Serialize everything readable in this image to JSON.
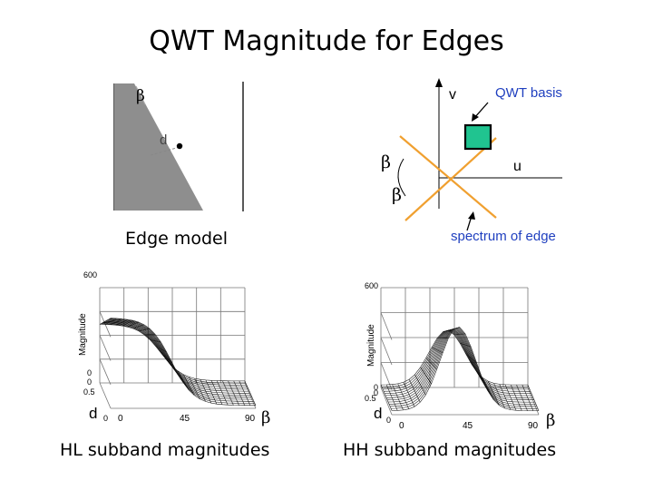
{
  "title": "QWT Magnitude for Edges",
  "edge_model": {
    "caption": "Edge model",
    "beta": "β",
    "d": "d"
  },
  "spectrum": {
    "v": "v",
    "u": "u",
    "beta_1": "β",
    "beta_2": "β",
    "qwt_basis": "QWT basis",
    "spectrum_label": "spectrum of edge",
    "basis_color": "#20c490"
  },
  "hl_plot": {
    "caption": "HL subband magnitudes",
    "z_label": "Magnitude",
    "z_ticks": [
      "600",
      "0"
    ],
    "d_ticks": [
      "0",
      "0.5"
    ],
    "d_label": "d",
    "d_zero": "0",
    "beta_ticks": [
      "0",
      "45",
      "90"
    ],
    "beta_label": "β"
  },
  "hh_plot": {
    "caption": "HH subband magnitudes",
    "z_label": "Magnitude",
    "z_ticks": [
      "600",
      "0"
    ],
    "d_ticks": [
      "0",
      "0.5"
    ],
    "d_label": "d",
    "d_zero": "0",
    "beta_ticks": [
      "0",
      "45",
      "90"
    ],
    "beta_label": "β"
  }
}
